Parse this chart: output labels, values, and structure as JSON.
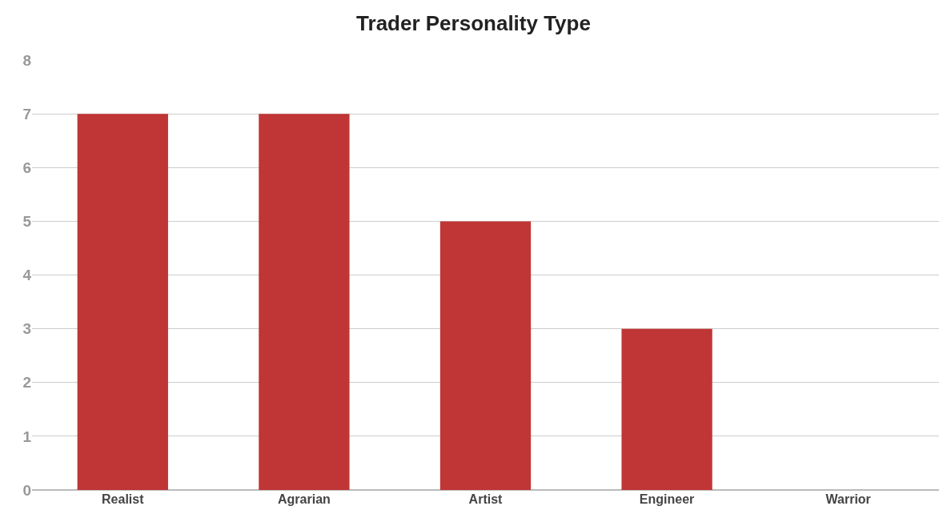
{
  "chart_data": {
    "type": "bar",
    "title": "Trader Personality Type",
    "categories": [
      "Realist",
      "Agrarian",
      "Artist",
      "Engineer",
      "Warrior"
    ],
    "values": [
      7,
      7,
      5,
      3,
      0
    ],
    "color": "#c03535",
    "ylim": [
      0,
      8
    ],
    "yticks": [
      0,
      1,
      2,
      3,
      4,
      5,
      6,
      7,
      8
    ],
    "grid": "y"
  }
}
